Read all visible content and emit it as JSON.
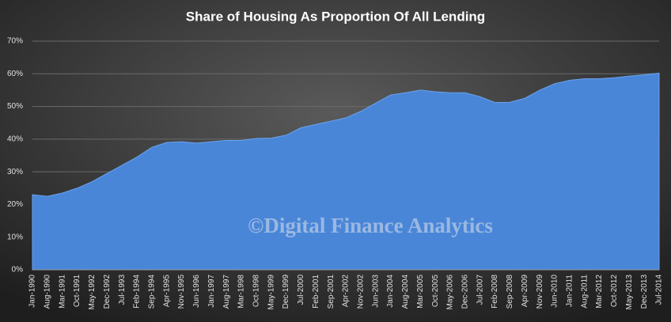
{
  "chart_data": {
    "type": "area",
    "title": "Share of Housing  As Proportion  Of All Lending",
    "annotation": "©Digital Finance Analytics",
    "categories": [
      "Jan-1990",
      "Aug-1990",
      "Mar-1991",
      "Oct-1991",
      "May-1992",
      "Dec-1992",
      "Jul-1993",
      "Feb-1994",
      "Sep-1994",
      "Apr-1995",
      "Nov-1995",
      "Jun-1996",
      "Jan-1997",
      "Aug-1997",
      "Mar-1998",
      "Oct-1998",
      "May-1999",
      "Dec-1999",
      "Jul-2000",
      "Feb-2001",
      "Sep-2001",
      "Apr-2002",
      "Nov-2002",
      "Jun-2003",
      "Jan-2004",
      "Aug-2004",
      "Mar-2005",
      "Oct-2005",
      "May-2006",
      "Dec-2006",
      "Jul-2007",
      "Feb-2008",
      "Sep-2008",
      "Apr-2009",
      "Nov-2009",
      "Jun-2010",
      "Jan-2011",
      "Aug-2011",
      "Mar-2012",
      "Oct-2012",
      "May-2013",
      "Dec-2013",
      "Jul-2014"
    ],
    "values": [
      23,
      22.5,
      23.5,
      25,
      27,
      29.5,
      32,
      34.5,
      37.5,
      39,
      39.2,
      38.8,
      39.2,
      39.6,
      39.6,
      40.2,
      40.3,
      41.2,
      43.5,
      44.5,
      45.5,
      46.5,
      48.5,
      51,
      53.5,
      54.2,
      55,
      54.5,
      54.2,
      54.2,
      53,
      51.2,
      51.3,
      52.5,
      55,
      57,
      58,
      58.5,
      58.5,
      58.8,
      59.3,
      59.7,
      60.2
    ],
    "color": "#4a86d8",
    "ylim": [
      0,
      70
    ],
    "yticks": [
      {
        "value": 0,
        "label": "0%"
      },
      {
        "value": 10,
        "label": "10%"
      },
      {
        "value": 20,
        "label": "20%"
      },
      {
        "value": 30,
        "label": "30%"
      },
      {
        "value": 40,
        "label": "40%"
      },
      {
        "value": 50,
        "label": "50%"
      },
      {
        "value": 60,
        "label": "60%"
      },
      {
        "value": 70,
        "label": "70%"
      }
    ],
    "grid": true
  }
}
